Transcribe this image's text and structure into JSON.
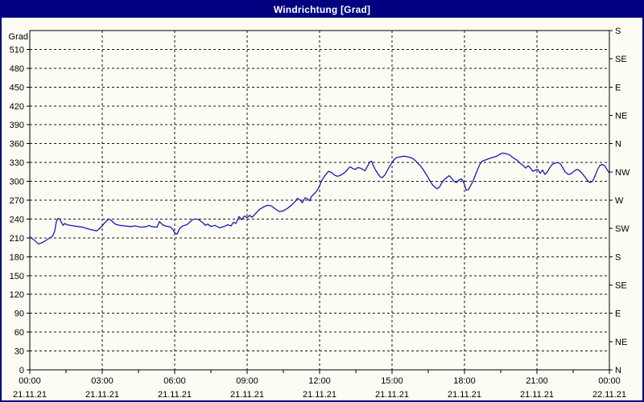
{
  "window": {
    "title": "Windrichtung [Grad]"
  },
  "colors": {
    "titlebar_bg": "#000080",
    "titlebar_text": "#FFFFFF",
    "window_border": "#000080",
    "background": "#FCFCF4",
    "grid": "#161616",
    "frame": "#000000",
    "line": "#1A1AB4"
  },
  "chart_data": {
    "type": "line",
    "title": "Windrichtung [Grad]",
    "grid": "dashed",
    "y_axis_left": {
      "title": "Grad",
      "min": 0,
      "max": 540,
      "tick_step": 30,
      "tick_labels": [
        "0",
        "30",
        "60",
        "90",
        "120",
        "150",
        "180",
        "210",
        "240",
        "270",
        "300",
        "330",
        "360",
        "390",
        "420",
        "450",
        "480",
        "510"
      ]
    },
    "y_axis_right": {
      "tick_step": 45,
      "compass_labels_bottom_to_top": [
        "N",
        "NE",
        "E",
        "SE",
        "S",
        "SW",
        "W",
        "NW",
        "N",
        "NE",
        "E",
        "SE",
        "S"
      ]
    },
    "x_axis": {
      "min_minutes": 0,
      "max_minutes": 1440,
      "major_step_hours": 3,
      "minor_tick_hours": [
        1.5,
        4.5,
        7.5,
        10.5,
        13.5,
        16.5,
        19.5,
        22.5
      ],
      "ticks": [
        {
          "time": "00:00",
          "date": "21.11.21"
        },
        {
          "time": "03:00",
          "date": "21.11.21"
        },
        {
          "time": "06:00",
          "date": "21.11.21"
        },
        {
          "time": "09:00",
          "date": "21.11.21"
        },
        {
          "time": "12:00",
          "date": "21.11.21"
        },
        {
          "time": "15:00",
          "date": "21.11.21"
        },
        {
          "time": "18:00",
          "date": "21.11.21"
        },
        {
          "time": "21:00",
          "date": "21.11.21"
        },
        {
          "time": "00:00",
          "date": "22.11.21"
        }
      ]
    },
    "series": [
      {
        "name": "Windrichtung",
        "unit": "Grad",
        "points": [
          [
            0,
            212
          ],
          [
            10,
            207
          ],
          [
            22,
            200
          ],
          [
            32,
            203
          ],
          [
            45,
            208
          ],
          [
            57,
            213
          ],
          [
            62,
            221
          ],
          [
            66,
            236
          ],
          [
            70,
            241
          ],
          [
            75,
            240
          ],
          [
            79,
            234
          ],
          [
            83,
            230
          ],
          [
            87,
            233
          ],
          [
            92,
            231
          ],
          [
            100,
            230
          ],
          [
            110,
            229
          ],
          [
            120,
            228
          ],
          [
            132,
            227
          ],
          [
            146,
            224
          ],
          [
            160,
            222
          ],
          [
            166,
            221
          ],
          [
            172,
            224
          ],
          [
            180,
            229
          ],
          [
            186,
            234
          ],
          [
            196,
            240
          ],
          [
            202,
            238
          ],
          [
            210,
            233
          ],
          [
            216,
            231
          ],
          [
            224,
            230
          ],
          [
            236,
            229
          ],
          [
            250,
            228
          ],
          [
            262,
            229
          ],
          [
            276,
            227
          ],
          [
            290,
            228
          ],
          [
            296,
            230
          ],
          [
            302,
            228
          ],
          [
            316,
            227
          ],
          [
            322,
            236
          ],
          [
            330,
            231
          ],
          [
            336,
            229
          ],
          [
            344,
            228
          ],
          [
            350,
            227
          ],
          [
            356,
            223
          ],
          [
            360,
            218
          ],
          [
            366,
            216
          ],
          [
            372,
            225
          ],
          [
            380,
            229
          ],
          [
            390,
            231
          ],
          [
            396,
            234
          ],
          [
            404,
            239
          ],
          [
            412,
            240
          ],
          [
            420,
            239
          ],
          [
            426,
            236
          ],
          [
            432,
            233
          ],
          [
            436,
            230
          ],
          [
            442,
            232
          ],
          [
            450,
            228
          ],
          [
            460,
            230
          ],
          [
            472,
            226
          ],
          [
            482,
            228
          ],
          [
            492,
            231
          ],
          [
            500,
            229
          ],
          [
            506,
            235
          ],
          [
            512,
            233
          ],
          [
            520,
            244
          ],
          [
            526,
            239
          ],
          [
            534,
            245
          ],
          [
            540,
            242
          ],
          [
            546,
            246
          ],
          [
            552,
            243
          ],
          [
            560,
            248
          ],
          [
            570,
            255
          ],
          [
            580,
            259
          ],
          [
            590,
            262
          ],
          [
            600,
            261
          ],
          [
            610,
            256
          ],
          [
            620,
            252
          ],
          [
            630,
            253
          ],
          [
            640,
            257
          ],
          [
            650,
            262
          ],
          [
            658,
            267
          ],
          [
            665,
            273
          ],
          [
            672,
            270
          ],
          [
            677,
            266
          ],
          [
            684,
            274
          ],
          [
            690,
            272
          ],
          [
            695,
            269
          ],
          [
            700,
            276
          ],
          [
            706,
            280
          ],
          [
            712,
            284
          ],
          [
            718,
            290
          ],
          [
            722,
            296
          ],
          [
            726,
            302
          ],
          [
            732,
            308
          ],
          [
            738,
            313
          ],
          [
            742,
            316
          ],
          [
            750,
            314
          ],
          [
            757,
            310
          ],
          [
            764,
            308
          ],
          [
            770,
            309
          ],
          [
            778,
            312
          ],
          [
            786,
            316
          ],
          [
            792,
            321
          ],
          [
            797,
            323
          ],
          [
            803,
            320
          ],
          [
            809,
            319
          ],
          [
            815,
            322
          ],
          [
            821,
            321
          ],
          [
            827,
            319
          ],
          [
            833,
            317
          ],
          [
            839,
            324
          ],
          [
            845,
            331
          ],
          [
            849,
            332
          ],
          [
            853,
            326
          ],
          [
            858,
            319
          ],
          [
            864,
            313
          ],
          [
            871,
            307
          ],
          [
            876,
            306
          ],
          [
            882,
            310
          ],
          [
            888,
            317
          ],
          [
            894,
            324
          ],
          [
            900,
            330
          ],
          [
            906,
            335
          ],
          [
            912,
            338
          ],
          [
            920,
            339
          ],
          [
            930,
            340
          ],
          [
            940,
            339
          ],
          [
            950,
            337
          ],
          [
            958,
            333
          ],
          [
            964,
            329
          ],
          [
            970,
            325
          ],
          [
            976,
            320
          ],
          [
            982,
            314
          ],
          [
            988,
            308
          ],
          [
            994,
            301
          ],
          [
            1000,
            295
          ],
          [
            1006,
            291
          ],
          [
            1012,
            288
          ],
          [
            1018,
            291
          ],
          [
            1024,
            298
          ],
          [
            1030,
            303
          ],
          [
            1036,
            306
          ],
          [
            1042,
            309
          ],
          [
            1048,
            305
          ],
          [
            1054,
            300
          ],
          [
            1060,
            298
          ],
          [
            1066,
            302
          ],
          [
            1072,
            304
          ],
          [
            1076,
            301
          ],
          [
            1080,
            295
          ],
          [
            1084,
            286
          ],
          [
            1090,
            287
          ],
          [
            1096,
            294
          ],
          [
            1101,
            300
          ],
          [
            1106,
            308
          ],
          [
            1112,
            318
          ],
          [
            1118,
            327
          ],
          [
            1124,
            332
          ],
          [
            1132,
            334
          ],
          [
            1140,
            336
          ],
          [
            1150,
            338
          ],
          [
            1160,
            340
          ],
          [
            1170,
            344
          ],
          [
            1176,
            345
          ],
          [
            1184,
            344
          ],
          [
            1192,
            342
          ],
          [
            1200,
            338
          ],
          [
            1210,
            334
          ],
          [
            1218,
            329
          ],
          [
            1226,
            325
          ],
          [
            1232,
            321
          ],
          [
            1238,
            325
          ],
          [
            1244,
            321
          ],
          [
            1250,
            316
          ],
          [
            1256,
            318
          ],
          [
            1262,
            319
          ],
          [
            1268,
            313
          ],
          [
            1274,
            318
          ],
          [
            1280,
            311
          ],
          [
            1286,
            315
          ],
          [
            1292,
            322
          ],
          [
            1298,
            327
          ],
          [
            1305,
            329
          ],
          [
            1312,
            330
          ],
          [
            1318,
            328
          ],
          [
            1324,
            322
          ],
          [
            1330,
            315
          ],
          [
            1338,
            311
          ],
          [
            1344,
            312
          ],
          [
            1352,
            316
          ],
          [
            1358,
            319
          ],
          [
            1364,
            318
          ],
          [
            1372,
            313
          ],
          [
            1378,
            308
          ],
          [
            1386,
            301
          ],
          [
            1392,
            298
          ],
          [
            1398,
            300
          ],
          [
            1404,
            308
          ],
          [
            1410,
            318
          ],
          [
            1416,
            325
          ],
          [
            1422,
            327
          ],
          [
            1428,
            325
          ],
          [
            1434,
            319
          ],
          [
            1440,
            313
          ]
        ]
      }
    ]
  }
}
